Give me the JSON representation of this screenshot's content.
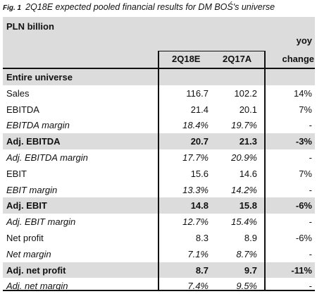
{
  "caption": {
    "fig": "Fig. 1",
    "text": "2Q18E expected pooled financial results for DM BOŚ's universe"
  },
  "header": {
    "unit": "PLN billion",
    "yoy_top": "yoy",
    "col1": "2Q18E",
    "col2": "2Q17A",
    "col3": "change"
  },
  "rows": [
    {
      "label": "Entire universe",
      "v1": "",
      "v2": "",
      "v3": "",
      "style": "section"
    },
    {
      "label": "Sales",
      "v1": "116.7",
      "v2": "102.2",
      "v3": "14%",
      "style": "normal"
    },
    {
      "label": "EBITDA",
      "v1": "21.4",
      "v2": "20.1",
      "v3": "7%",
      "style": "normal"
    },
    {
      "label": "EBITDA margin",
      "v1": "18.4%",
      "v2": "19.7%",
      "v3": "-",
      "style": "ital"
    },
    {
      "label": "Adj. EBITDA",
      "v1": "20.7",
      "v2": "21.3",
      "v3": "-3%",
      "style": "bold"
    },
    {
      "label": "Adj. EBITDA margin",
      "v1": "17.7%",
      "v2": "20.9%",
      "v3": "-",
      "style": "ital"
    },
    {
      "label": "EBIT",
      "v1": "15.6",
      "v2": "14.6",
      "v3": "7%",
      "style": "normal"
    },
    {
      "label": "EBIT margin",
      "v1": "13.3%",
      "v2": "14.2%",
      "v3": "-",
      "style": "ital"
    },
    {
      "label": "Adj. EBIT",
      "v1": "14.8",
      "v2": "15.8",
      "v3": "-6%",
      "style": "bold"
    },
    {
      "label": "Adj. EBIT margin",
      "v1": "12.7%",
      "v2": "15.4%",
      "v3": "-",
      "style": "ital"
    },
    {
      "label": "Net profit",
      "v1": "8.3",
      "v2": "8.9",
      "v3": "-6%",
      "style": "normal"
    },
    {
      "label": "Net margin",
      "v1": "7.1%",
      "v2": "8.7%",
      "v3": "-",
      "style": "ital"
    },
    {
      "label": "Adj. net profit",
      "v1": "8.7",
      "v2": "9.7",
      "v3": "-11%",
      "style": "bold"
    },
    {
      "label": "Adj. net margin",
      "v1": "7.4%",
      "v2": "9.5%",
      "v3": "-",
      "style": "ital"
    }
  ]
}
